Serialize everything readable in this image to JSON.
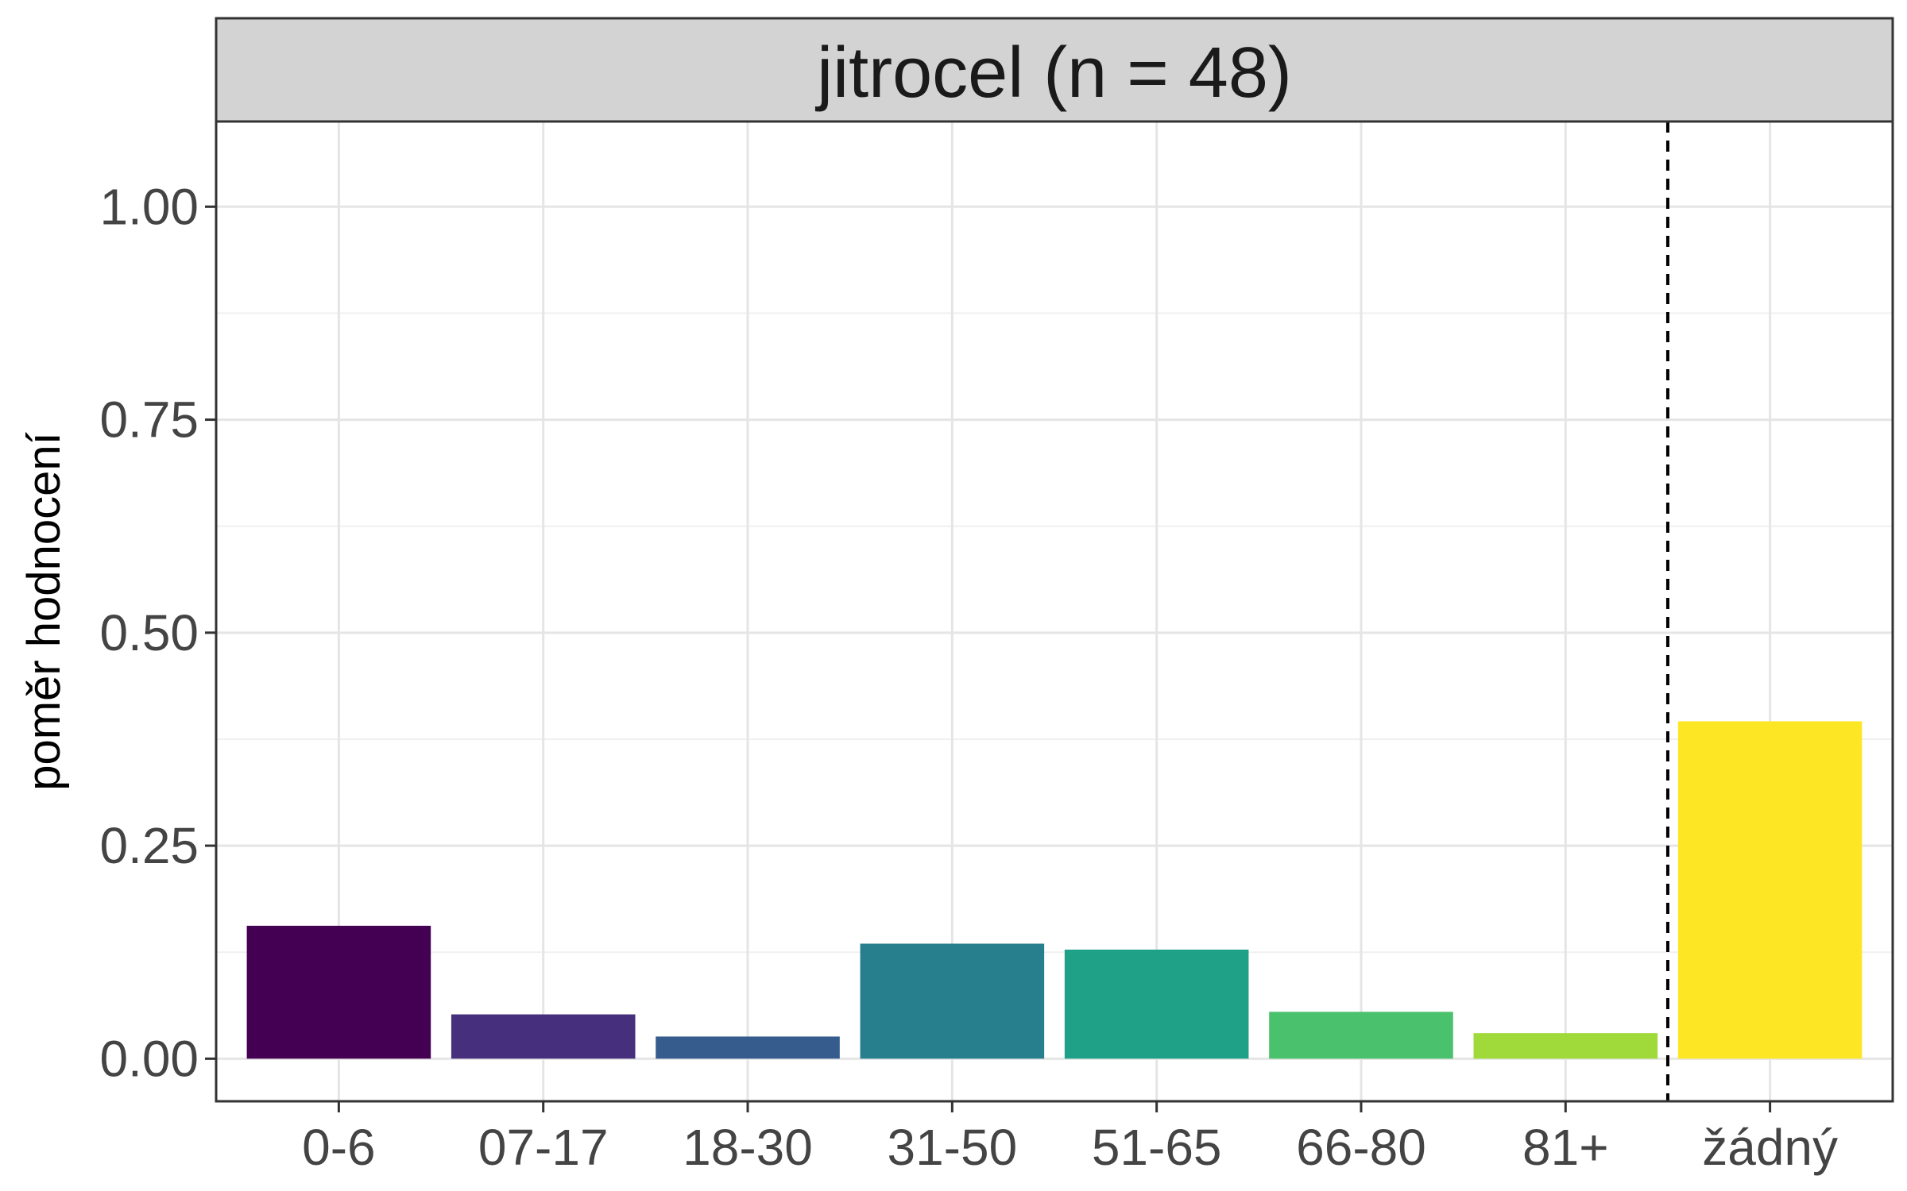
{
  "chart_data": {
    "type": "bar",
    "facet_title": "jitrocel (n = 48)",
    "ylabel": "poměr hodnocení",
    "xlabel": "",
    "categories": [
      "0-6",
      "07-17",
      "18-30",
      "31-50",
      "51-65",
      "66-80",
      "81+",
      "žádný"
    ],
    "values": [
      0.156,
      0.052,
      0.026,
      0.135,
      0.128,
      0.055,
      0.03,
      0.396
    ],
    "colors": [
      "#440154",
      "#46307E",
      "#365C8D",
      "#277F8E",
      "#1FA187",
      "#4AC16D",
      "#9FDA3A",
      "#FDE725"
    ],
    "ylim": [
      -0.05,
      1.1
    ],
    "yticks": [
      0.0,
      0.25,
      0.5,
      0.75,
      1.0
    ],
    "ytick_labels": [
      "0.00",
      "0.25",
      "0.50",
      "0.75",
      "1.00"
    ],
    "reference_line": {
      "style": "dashed",
      "position": "between 81+ and žádný"
    },
    "grid": true,
    "theme": "bw"
  }
}
